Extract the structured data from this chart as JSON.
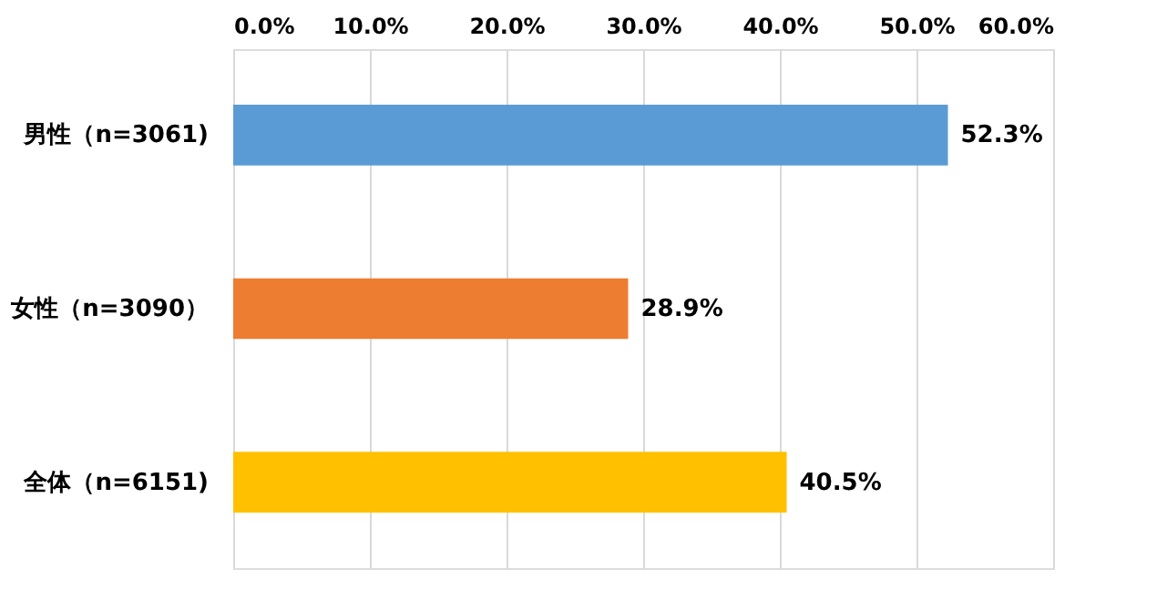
{
  "chart_data": {
    "type": "bar",
    "orientation": "horizontal",
    "categories": [
      "男性（n=3061)",
      "女性（n=3090）",
      "全体（n=6151)"
    ],
    "values": [
      52.3,
      28.9,
      40.5
    ],
    "colors": [
      "#5b9bd5",
      "#ed7d31",
      "#ffc000"
    ],
    "value_labels": [
      "52.3%",
      "28.9%",
      "40.5%"
    ],
    "xlim": [
      0,
      60
    ],
    "xticks": [
      {
        "value": 0,
        "label": "0.0%"
      },
      {
        "value": 10,
        "label": "10.0%"
      },
      {
        "value": 20,
        "label": "20.0%"
      },
      {
        "value": 30,
        "label": "30.0%"
      },
      {
        "value": 40,
        "label": "40.0%"
      },
      {
        "value": 50,
        "label": "50.0%"
      },
      {
        "value": 60,
        "label": "60.0%"
      }
    ],
    "grid": "x"
  }
}
